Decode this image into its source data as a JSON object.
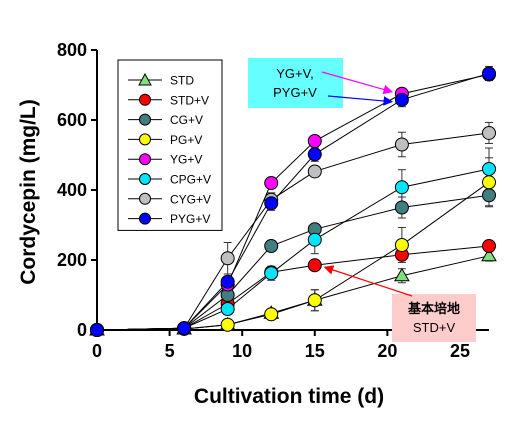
{
  "chart_data": {
    "type": "line",
    "title": "",
    "xlabel": "Cultivation time (d)",
    "ylabel": "Cordycepin (mg/L)",
    "xlim": [
      0,
      27
    ],
    "ylim": [
      0,
      800
    ],
    "xticks": [
      0,
      5,
      10,
      15,
      20,
      25
    ],
    "yticks": [
      0,
      200,
      400,
      600,
      800
    ],
    "grid": false,
    "legend_position": "top-left",
    "x": [
      0,
      6,
      9,
      12,
      15,
      21,
      27
    ],
    "series": [
      {
        "name": "STD",
        "marker": "triangle",
        "color": "#7fe07f",
        "values": [
          0,
          3,
          15,
          48,
          85,
          155,
          212
        ],
        "errors": [
          0,
          0,
          5,
          12,
          30,
          20,
          15
        ]
      },
      {
        "name": "STD+V",
        "marker": "circle",
        "color": "#ff0000",
        "values": [
          0,
          5,
          75,
          165,
          185,
          215,
          240
        ],
        "errors": [
          0,
          0,
          10,
          10,
          10,
          15,
          15
        ]
      },
      {
        "name": "CG+V",
        "marker": "circle",
        "color": "#3f7f7f",
        "values": [
          0,
          5,
          100,
          240,
          288,
          350,
          385
        ],
        "errors": [
          0,
          0,
          10,
          12,
          15,
          30,
          30
        ]
      },
      {
        "name": "PG+V",
        "marker": "circle",
        "color": "#ffff00",
        "values": [
          0,
          3,
          15,
          45,
          85,
          243,
          422
        ],
        "errors": [
          0,
          0,
          5,
          10,
          30,
          50,
          70
        ]
      },
      {
        "name": "YG+V",
        "marker": "circle",
        "color": "#ff00ff",
        "values": [
          0,
          5,
          130,
          420,
          540,
          675,
          730
        ],
        "errors": [
          0,
          0,
          15,
          15,
          15,
          15,
          15
        ]
      },
      {
        "name": "CPG+V",
        "marker": "circle",
        "color": "#00e5ff",
        "values": [
          0,
          5,
          60,
          162,
          258,
          408,
          460
        ],
        "errors": [
          0,
          0,
          10,
          20,
          40,
          50,
          60
        ]
      },
      {
        "name": "CYG+V",
        "marker": "circle",
        "color": "#bfbfbf",
        "values": [
          0,
          5,
          205,
          372,
          453,
          530,
          563
        ],
        "errors": [
          0,
          0,
          45,
          20,
          15,
          35,
          30
        ]
      },
      {
        "name": "PYG+V",
        "marker": "circle",
        "color": "#0000ff",
        "values": [
          0,
          5,
          138,
          362,
          502,
          658,
          733
        ],
        "errors": [
          0,
          0,
          15,
          20,
          20,
          20,
          20
        ]
      }
    ],
    "annotations": [
      {
        "lines": [
          "YG+V,",
          "PYG+V"
        ],
        "background": "#66ffff"
      },
      {
        "lines": [
          "基本培地",
          "STD+V"
        ],
        "background": "#ffcccc"
      }
    ]
  }
}
